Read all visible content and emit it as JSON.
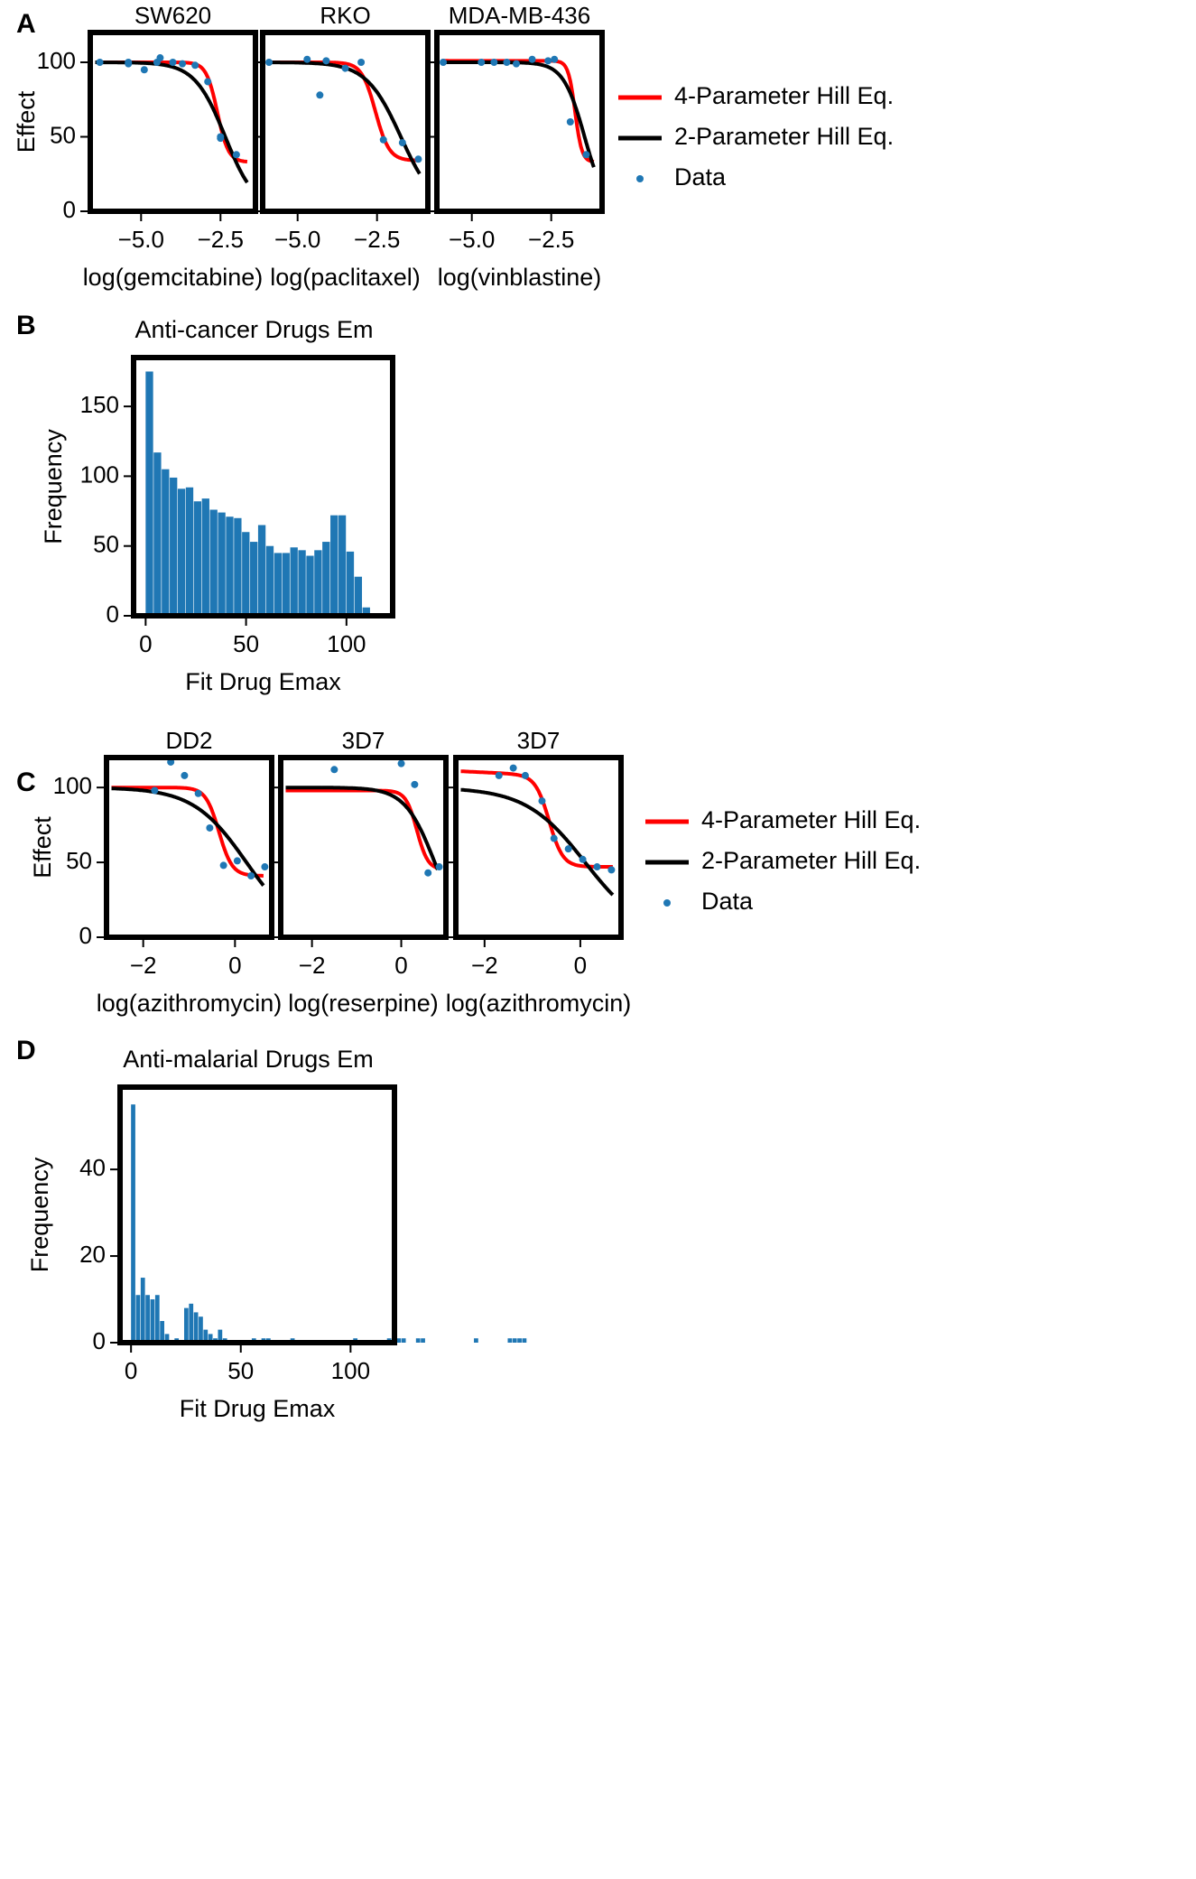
{
  "figure": {
    "panel_letters": [
      "A",
      "B",
      "C",
      "D"
    ]
  },
  "colors": {
    "four_param": "#ff0000",
    "two_param": "#000000",
    "data": "#1f77b4",
    "bar": "#1f77b4",
    "frame": "#000000"
  },
  "chart_data": [
    {
      "panel": "A",
      "type": "line",
      "ylabel": "Effect",
      "ylim": [
        0,
        120
      ],
      "yticks": [
        "0",
        "50",
        "100"
      ],
      "legend": {
        "placement": "right",
        "entries": [
          "4-Parameter Hill Eq.",
          "2-Parameter Hill Eq.",
          "Data"
        ]
      },
      "subplots": [
        {
          "title": "SW620",
          "xlabel": "log(gemcitabine)",
          "xlim": [
            -6.6,
            -1.4
          ],
          "xticks": [
            "−5.0",
            "−2.5"
          ],
          "data": {
            "x": [
              -6.3,
              -5.4,
              -5.4,
              -4.9,
              -4.5,
              -4.4,
              -4.0,
              -3.7,
              -3.3,
              -2.9,
              -2.5,
              -2.5,
              -2.0
            ],
            "y": [
              100,
              100,
              99,
              95,
              100,
              103,
              100,
              99,
              98,
              87,
              50,
              49,
              38
            ]
          },
          "four_param": {
            "top": 100,
            "bottom": 33,
            "ec50": -2.6,
            "hill": 2.5
          },
          "two_param": {
            "ec50": -2.35,
            "hill": 0.9
          }
        },
        {
          "title": "RKO",
          "xlabel": "log(paclitaxel)",
          "xlim": [
            -6.1,
            -0.9
          ],
          "xticks": [
            "−5.0",
            "−2.5"
          ],
          "data": {
            "x": [
              -5.9,
              -4.7,
              -4.3,
              -4.1,
              -3.5,
              -3.0,
              -2.3,
              -1.7,
              -1.2
            ],
            "y": [
              100,
              102,
              78,
              101,
              96,
              100,
              48,
              46,
              35
            ]
          },
          "four_param": {
            "top": 100,
            "bottom": 34,
            "ec50": -2.55,
            "hill": 2.0
          },
          "two_param": {
            "ec50": -1.75,
            "hill": 0.8
          }
        },
        {
          "title": "MDA-MB-436",
          "xlabel": "log(vinblastine)",
          "xlim": [
            -6.1,
            -0.9
          ],
          "xticks": [
            "−5.0",
            "−2.5"
          ],
          "data": {
            "x": [
              -5.9,
              -4.7,
              -4.3,
              -3.9,
              -3.6,
              -3.1,
              -2.6,
              -2.4,
              -1.9,
              -1.4
            ],
            "y": [
              100,
              100,
              100,
              100,
              99,
              102,
              101,
              102,
              60,
              38
            ]
          },
          "four_param": {
            "top": 101,
            "bottom": 33,
            "ec50": -1.75,
            "hill": 4.0
          },
          "two_param": {
            "ec50": -1.45,
            "hill": 1.3
          }
        }
      ]
    },
    {
      "panel": "B",
      "type": "bar",
      "title": "Anti-cancer Drugs Em",
      "xlabel": "Fit Drug Emax",
      "ylabel": "Frequency",
      "xlim": [
        -6,
        123
      ],
      "ylim": [
        0,
        185
      ],
      "xticks": [
        "0",
        "50",
        "100"
      ],
      "yticks": [
        "0",
        "50",
        "100",
        "150"
      ],
      "bin_start": 0,
      "bin_width": 4,
      "values": [
        175,
        117,
        105,
        99,
        91,
        92,
        82,
        84,
        76,
        74,
        71,
        70,
        60,
        53,
        65,
        50,
        45,
        45,
        49,
        47,
        43,
        47,
        53,
        72,
        72,
        46,
        28,
        6
      ]
    },
    {
      "panel": "C",
      "type": "line",
      "ylabel": "Effect",
      "ylim": [
        0,
        120
      ],
      "yticks": [
        "0",
        "50",
        "100"
      ],
      "legend": {
        "placement": "right",
        "entries": [
          "4-Parameter Hill Eq.",
          "2-Parameter Hill Eq.",
          "Data"
        ]
      },
      "subplots": [
        {
          "title": "DD2",
          "xlabel": "log(azithromycin)",
          "xlim": [
            -2.8,
            0.8
          ],
          "xticks": [
            "−2",
            "0"
          ],
          "data": {
            "x": [
              -1.75,
              -1.4,
              -1.1,
              -0.8,
              -0.55,
              -0.25,
              0.05,
              0.35,
              0.65
            ],
            "y": [
              98,
              117,
              108,
              96,
              73,
              48,
              51,
              41,
              47
            ]
          },
          "four_param": {
            "top": 100,
            "bottom": 41,
            "ec50": -0.35,
            "hill": 3.0
          },
          "two_param": {
            "ec50": 0.25,
            "hill": 0.75
          }
        },
        {
          "title": "3D7",
          "xlabel": "log(reserpine)",
          "xlim": [
            -2.7,
            1.0
          ],
          "xticks": [
            "−2",
            "0"
          ],
          "data": {
            "x": [
              -1.5,
              0.0,
              0.3,
              0.6,
              0.85
            ],
            "y": [
              112,
              116,
              102,
              43,
              47
            ]
          },
          "four_param": {
            "top": 98,
            "bottom": 45,
            "ec50": 0.35,
            "hill": 3.5
          },
          "two_param": {
            "ec50": 0.75,
            "hill": 1.3
          }
        },
        {
          "title": "3D7",
          "xlabel": "log(azithromycin)",
          "xlim": [
            -2.6,
            0.85
          ],
          "xticks": [
            "−2",
            "0"
          ],
          "data": {
            "x": [
              -1.7,
              -1.4,
              -1.15,
              -0.8,
              -0.55,
              -0.25,
              0.05,
              0.35,
              0.65
            ],
            "y": [
              108,
              113,
              108,
              91,
              66,
              59,
              52,
              47,
              45
            ]
          },
          "four_param": {
            "top": 111,
            "bottom": 47,
            "ec50": -0.65,
            "hill": 3.0,
            "linear_topslope": -1.5
          },
          "two_param": {
            "ec50": 0.1,
            "hill": 0.7
          }
        }
      ]
    },
    {
      "panel": "D",
      "type": "bar",
      "title": "Anti-malarial Drugs Em",
      "xlabel": "Fit Drug Emax",
      "ylabel": "Frequency",
      "xlim": [
        -5,
        120
      ],
      "ylim": [
        0,
        59
      ],
      "xticks": [
        "0",
        "50",
        "100"
      ],
      "yticks": [
        "0",
        "20",
        "40"
      ],
      "bin_start": 0,
      "bin_width": 2.2,
      "values": [
        55,
        11,
        15,
        11,
        10,
        11,
        5,
        2,
        0,
        1,
        0,
        8,
        9,
        7,
        6,
        3,
        2,
        1,
        3,
        1,
        0,
        0,
        0,
        0,
        0,
        1,
        0,
        1,
        1,
        0,
        0,
        0,
        0,
        1,
        0,
        0,
        0,
        0,
        0,
        0,
        0,
        0,
        0,
        0,
        0,
        0,
        1,
        0,
        0,
        0,
        0,
        0,
        0,
        1,
        1,
        1,
        1,
        0,
        0,
        1,
        1,
        0,
        0,
        0,
        0,
        0,
        0,
        0,
        0,
        0,
        0,
        1,
        0,
        0,
        0,
        0,
        0,
        0,
        1,
        1,
        1,
        1
      ]
    }
  ]
}
